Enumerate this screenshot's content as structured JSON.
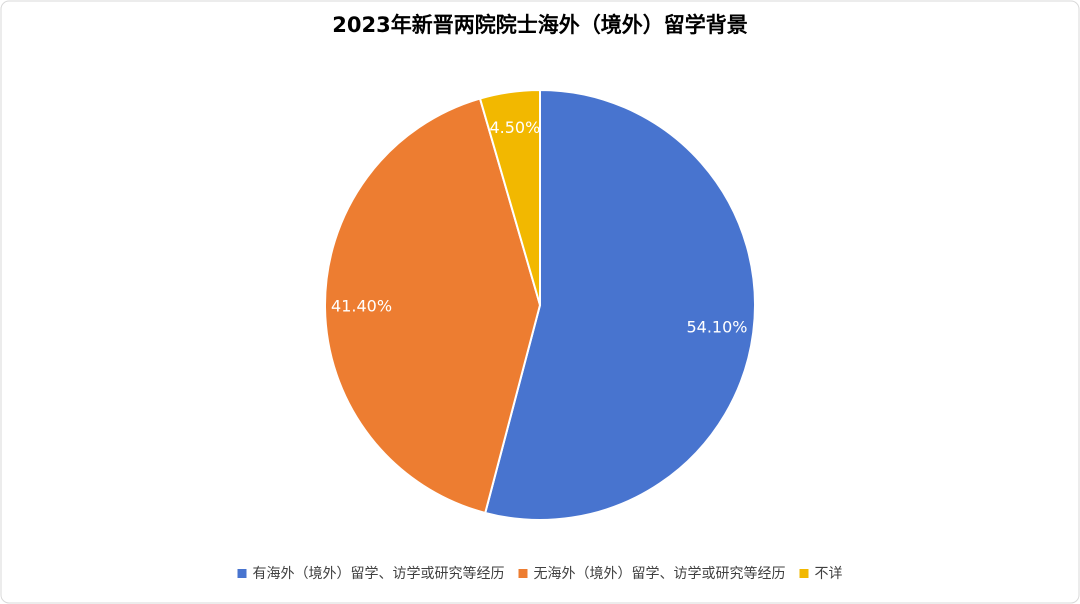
{
  "chart_data": {
    "type": "pie",
    "title": "2023年新晋两院院士海外（境外）留学背景",
    "categories": [
      "有海外（境外）留学、访学或研究等经历",
      "无海外（境外）留学、访学或研究等经历",
      "不详"
    ],
    "values": [
      54.1,
      41.4,
      4.5
    ],
    "value_labels": [
      "54.10%",
      "41.40%",
      "4.50%"
    ],
    "colors": [
      "#4874cf",
      "#ed7d31",
      "#f2b800"
    ],
    "legend": "bottom"
  }
}
